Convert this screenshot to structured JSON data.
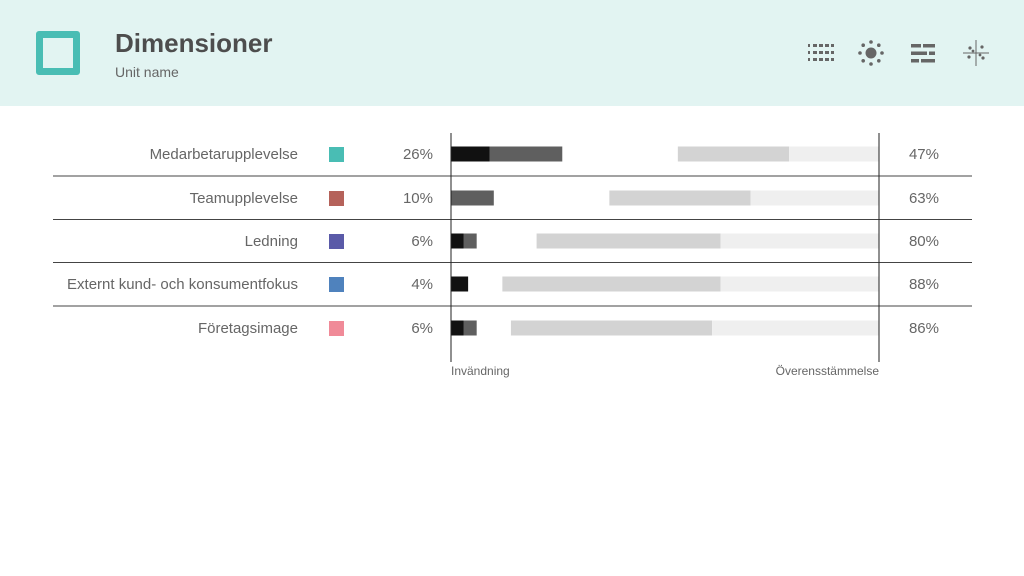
{
  "header": {
    "title": "Dimensioner",
    "subtitle": "Unit name"
  },
  "toolbar": {
    "icons": [
      "numbered-list-icon",
      "sun-icon",
      "bar-list-icon",
      "scatter-icon"
    ]
  },
  "chart_data": {
    "type": "bar",
    "categories": [
      "Medarbetarupplevelse",
      "Teamupplevelse",
      "Ledning",
      "Externt kund- och konsumentfokus",
      "Företagsimage"
    ],
    "category_colors": [
      "#49bdb4",
      "#b5625a",
      "#5a5aa8",
      "#4f82bd",
      "#f08a98"
    ],
    "series": [
      {
        "name": "Invändning",
        "values": [
          26,
          10,
          6,
          4,
          6
        ],
        "labels": [
          "26%",
          "10%",
          "6%",
          "4%",
          "6%"
        ],
        "split": [
          9,
          0,
          3,
          4,
          3
        ]
      },
      {
        "name": "Överensstämmelse",
        "values": [
          47,
          63,
          80,
          88,
          86
        ],
        "labels": [
          "47%",
          "63%",
          "80%",
          "88%",
          "86%"
        ],
        "split": [
          21,
          30,
          37,
          37,
          39
        ]
      }
    ],
    "xlabel_left": "Invändning",
    "xlabel_right": "Överensstämmelse",
    "xlim": [
      0,
      100
    ]
  }
}
